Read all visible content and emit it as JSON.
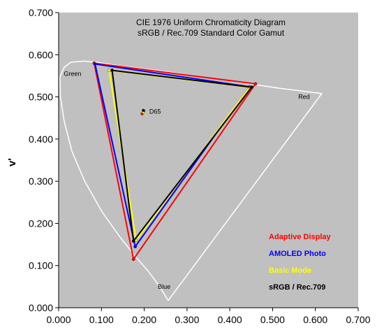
{
  "chart_data": {
    "type": "scatter",
    "title_lines": [
      "CIE 1976 Uniform Chromaticity Diagram",
      "sRGB / Rec.709 Standard Color Gamut"
    ],
    "xlabel": "",
    "ylabel": "v'",
    "xlim": [
      0,
      0.7
    ],
    "ylim": [
      0,
      0.7
    ],
    "xticks": [
      "0.000",
      "0.100",
      "0.200",
      "0.300",
      "0.400",
      "0.500",
      "0.600",
      "0.700"
    ],
    "yticks": [
      "0.000",
      "0.100",
      "0.200",
      "0.300",
      "0.400",
      "0.500",
      "0.600",
      "0.700"
    ],
    "plot_background": "#c0c0c0",
    "locus_color": "#ffffff",
    "spectral_locus": [
      [
        0.256,
        0.017
      ],
      [
        0.235,
        0.052
      ],
      [
        0.209,
        0.087
      ],
      [
        0.18,
        0.121
      ],
      [
        0.143,
        0.168
      ],
      [
        0.101,
        0.228
      ],
      [
        0.061,
        0.3
      ],
      [
        0.031,
        0.371
      ],
      [
        0.013,
        0.442
      ],
      [
        0.004,
        0.502
      ],
      [
        0.003,
        0.548
      ],
      [
        0.013,
        0.57
      ],
      [
        0.028,
        0.582
      ],
      [
        0.06,
        0.585
      ],
      [
        0.09,
        0.582
      ],
      [
        0.14,
        0.574
      ],
      [
        0.25,
        0.56
      ],
      [
        0.4,
        0.538
      ],
      [
        0.52,
        0.52
      ],
      [
        0.615,
        0.508
      ],
      [
        0.256,
        0.017
      ]
    ],
    "region_labels": [
      {
        "text": "Green",
        "x": 0.012,
        "y": 0.55
      },
      {
        "text": "Red",
        "x": 0.56,
        "y": 0.495
      },
      {
        "text": "Blue",
        "x": 0.232,
        "y": 0.045
      }
    ],
    "white_point": {
      "label": "D65",
      "x": 0.212,
      "y": 0.465
    },
    "series": [
      {
        "name": "Adaptive Display",
        "color": "#ff0000",
        "points": [
          [
            0.46,
            0.531
          ],
          [
            0.083,
            0.58
          ],
          [
            0.175,
            0.115
          ]
        ],
        "white": [
          0.195,
          0.46
        ]
      },
      {
        "name": "AMOLED Photo",
        "color": "#0000ff",
        "points": [
          [
            0.446,
            0.524
          ],
          [
            0.085,
            0.578
          ],
          [
            0.179,
            0.145
          ]
        ],
        "white": [
          0.199,
          0.466
        ]
      },
      {
        "name": "Basic Mode",
        "color": "#ffff00",
        "points": [
          [
            0.446,
            0.523
          ],
          [
            0.118,
            0.563
          ],
          [
            0.181,
            0.16
          ]
        ],
        "white": [
          0.198,
          0.464
        ]
      },
      {
        "name": "sRGB / Rec.709",
        "color": "#000000",
        "points": [
          [
            0.451,
            0.523
          ],
          [
            0.125,
            0.563
          ],
          [
            0.175,
            0.158
          ]
        ],
        "white": [
          0.198,
          0.468
        ]
      }
    ],
    "legend_position": "bottom-right"
  }
}
